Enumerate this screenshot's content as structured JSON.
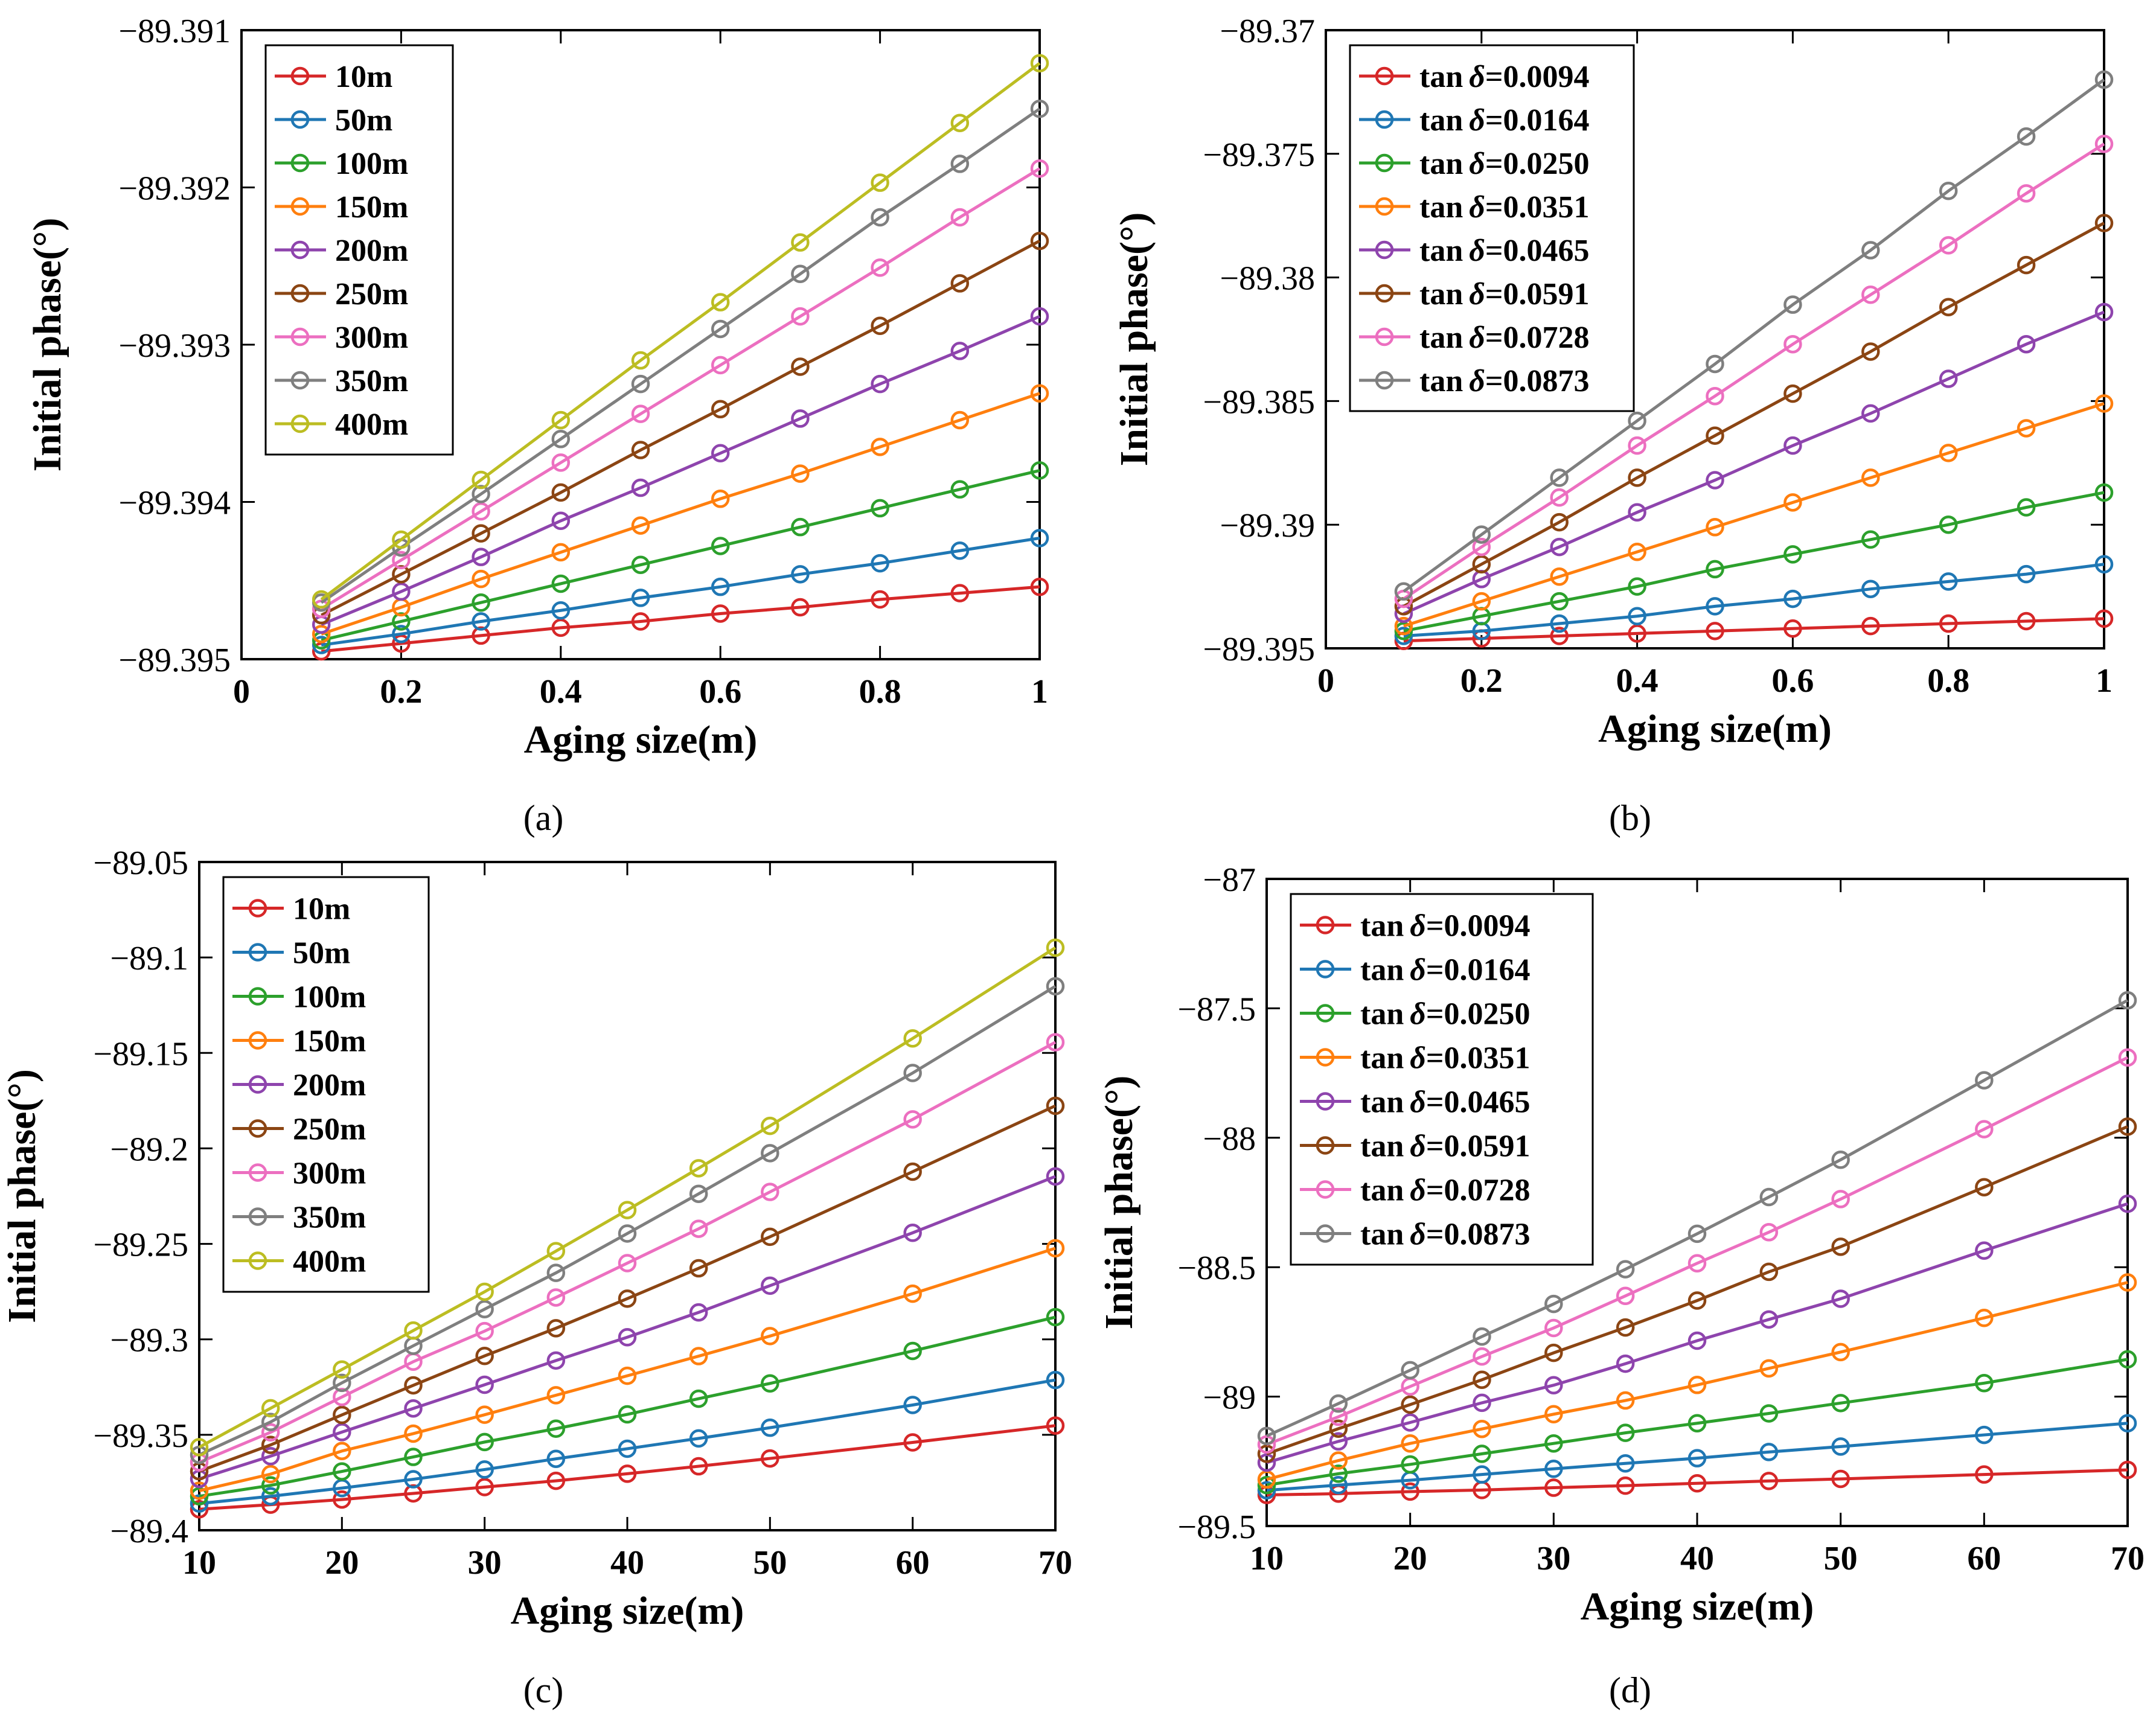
{
  "colors": {
    "series": [
      "#d62728",
      "#1f77b4",
      "#2ca02c",
      "#ff7f0e",
      "#8e44ad",
      "#8b4513",
      "#ec6fc0",
      "#7f7f7f",
      "#bcbd22"
    ]
  },
  "chart_data": [
    {
      "type": "line",
      "caption": "(a)",
      "xlabel": "Aging size(m)",
      "ylabel": "Initial phase(°)",
      "xlim": [
        0,
        1
      ],
      "ylim": [
        -89.395,
        -89.391
      ],
      "xticks": [
        0,
        0.2,
        0.4,
        0.6,
        0.8,
        1
      ],
      "xtick_labels": [
        "0",
        "0.2",
        "0.4",
        "0.6",
        "0.8",
        "1"
      ],
      "yticks": [
        -89.395,
        -89.394,
        -89.393,
        -89.392,
        -89.391
      ],
      "ytick_labels": [
        "−89.395",
        "−89.394",
        "−89.393",
        "−89.392",
        "−89.391"
      ],
      "legend_position": "top-left",
      "x": [
        0.1,
        0.2,
        0.3,
        0.4,
        0.5,
        0.6,
        0.7,
        0.8,
        0.9,
        1.0
      ],
      "series": [
        {
          "name": "10m",
          "values": [
            -89.39495,
            -89.3949,
            -89.39485,
            -89.3948,
            -89.39476,
            -89.39471,
            -89.39467,
            -89.39462,
            -89.39458,
            -89.39454
          ]
        },
        {
          "name": "50m",
          "values": [
            -89.39491,
            -89.39484,
            -89.39476,
            -89.39469,
            -89.39461,
            -89.39454,
            -89.39446,
            -89.39439,
            -89.39431,
            -89.39423
          ]
        },
        {
          "name": "100m",
          "values": [
            -89.39488,
            -89.39476,
            -89.39464,
            -89.39452,
            -89.3944,
            -89.39428,
            -89.39416,
            -89.39404,
            -89.39392,
            -89.3938
          ]
        },
        {
          "name": "150m",
          "values": [
            -89.39484,
            -89.39467,
            -89.39449,
            -89.39432,
            -89.39415,
            -89.39398,
            -89.39382,
            -89.39365,
            -89.39348,
            -89.39331
          ]
        },
        {
          "name": "200m",
          "values": [
            -89.39478,
            -89.39457,
            -89.39435,
            -89.39412,
            -89.39391,
            -89.39369,
            -89.39347,
            -89.39325,
            -89.39304,
            -89.39282
          ]
        },
        {
          "name": "250m",
          "values": [
            -89.39472,
            -89.39446,
            -89.3942,
            -89.39394,
            -89.39367,
            -89.39341,
            -89.39314,
            -89.39288,
            -89.39261,
            -89.39234
          ]
        },
        {
          "name": "300m",
          "values": [
            -89.39468,
            -89.39437,
            -89.39406,
            -89.39375,
            -89.39344,
            -89.39313,
            -89.39282,
            -89.39251,
            -89.39219,
            -89.39188
          ]
        },
        {
          "name": "350m",
          "values": [
            -89.39464,
            -89.39429,
            -89.39395,
            -89.3936,
            -89.39325,
            -89.3929,
            -89.39255,
            -89.39219,
            -89.39185,
            -89.3915
          ]
        },
        {
          "name": "400m",
          "values": [
            -89.39462,
            -89.39424,
            -89.39386,
            -89.39348,
            -89.3931,
            -89.39273,
            -89.39235,
            -89.39197,
            -89.39159,
            -89.39121
          ]
        }
      ]
    },
    {
      "type": "line",
      "caption": "(b)",
      "xlabel": "Aging size(m)",
      "ylabel": "Initial phase(°)",
      "xlim": [
        0,
        1
      ],
      "ylim": [
        -89.395,
        -89.37
      ],
      "xticks": [
        0,
        0.2,
        0.4,
        0.6,
        0.8,
        1
      ],
      "xtick_labels": [
        "0",
        "0.2",
        "0.4",
        "0.6",
        "0.8",
        "1"
      ],
      "yticks": [
        -89.395,
        -89.39,
        -89.385,
        -89.38,
        -89.375,
        -89.37
      ],
      "ytick_labels": [
        "−89.395",
        "−89.39",
        "−89.385",
        "−89.38",
        "−89.375",
        "−89.37"
      ],
      "legend_position": "top-left",
      "legend_prefix": "tan",
      "legend_symbol": "δ",
      "x": [
        0.1,
        0.2,
        0.3,
        0.4,
        0.5,
        0.6,
        0.7,
        0.8,
        0.9,
        1.0
      ],
      "series": [
        {
          "name": "=0.0094",
          "values": [
            -89.3947,
            -89.3946,
            -89.3945,
            -89.3944,
            -89.3943,
            -89.3942,
            -89.3941,
            -89.394,
            -89.3939,
            -89.3938
          ]
        },
        {
          "name": "=0.0164",
          "values": [
            -89.3945,
            -89.3943,
            -89.394,
            -89.3937,
            -89.3933,
            -89.393,
            -89.3926,
            -89.3923,
            -89.392,
            -89.3916
          ]
        },
        {
          "name": "=0.0250",
          "values": [
            -89.3943,
            -89.3937,
            -89.3931,
            -89.3925,
            -89.3918,
            -89.3912,
            -89.3906,
            -89.39,
            -89.3893,
            -89.3887
          ]
        },
        {
          "name": "=0.0351",
          "values": [
            -89.3941,
            -89.3931,
            -89.3921,
            -89.3911,
            -89.3901,
            -89.3891,
            -89.3881,
            -89.3871,
            -89.3861,
            -89.3851
          ]
        },
        {
          "name": "=0.0465",
          "values": [
            -89.3936,
            -89.3922,
            -89.3909,
            -89.3895,
            -89.3882,
            -89.3868,
            -89.3855,
            -89.3841,
            -89.3827,
            -89.3814
          ]
        },
        {
          "name": "=0.0591",
          "values": [
            -89.3933,
            -89.3916,
            -89.3899,
            -89.3881,
            -89.3864,
            -89.3847,
            -89.383,
            -89.3812,
            -89.3795,
            -89.3778
          ]
        },
        {
          "name": "=0.0728",
          "values": [
            -89.393,
            -89.3909,
            -89.3889,
            -89.3868,
            -89.3848,
            -89.3827,
            -89.3807,
            -89.3787,
            -89.3766,
            -89.3746
          ]
        },
        {
          "name": "=0.0873",
          "values": [
            -89.3927,
            -89.3904,
            -89.3881,
            -89.3858,
            -89.3835,
            -89.3811,
            -89.3789,
            -89.3765,
            -89.3743,
            -89.372
          ]
        }
      ]
    },
    {
      "type": "line",
      "caption": "(c)",
      "xlabel": "Aging size(m)",
      "ylabel": "Initial phase(°)",
      "xlim": [
        10,
        70
      ],
      "ylim": [
        -89.4,
        -89.05
      ],
      "xticks": [
        10,
        20,
        30,
        40,
        50,
        60,
        70
      ],
      "xtick_labels": [
        "10",
        "20",
        "30",
        "40",
        "50",
        "60",
        "70"
      ],
      "yticks": [
        -89.4,
        -89.35,
        -89.3,
        -89.25,
        -89.2,
        -89.15,
        -89.1,
        -89.05
      ],
      "ytick_labels": [
        "−89.4",
        "−89.35",
        "−89.3",
        "−89.25",
        "−89.2",
        "−89.15",
        "−89.1",
        "−89.05"
      ],
      "legend_position": "top-left",
      "x": [
        10,
        15,
        20,
        25,
        30,
        35,
        40,
        45,
        50,
        60,
        70
      ],
      "series": [
        {
          "name": "10m",
          "values": [
            -89.389,
            -89.3866,
            -89.3839,
            -89.3807,
            -89.3774,
            -89.3741,
            -89.3704,
            -89.3665,
            -89.3624,
            -89.354,
            -89.3452
          ]
        },
        {
          "name": "50m",
          "values": [
            -89.386,
            -89.3822,
            -89.3779,
            -89.3733,
            -89.3682,
            -89.3626,
            -89.3573,
            -89.3519,
            -89.3463,
            -89.3344,
            -89.3213
          ]
        },
        {
          "name": "100m",
          "values": [
            -89.3822,
            -89.3765,
            -89.3692,
            -89.3616,
            -89.3538,
            -89.3468,
            -89.3393,
            -89.3311,
            -89.3231,
            -89.3061,
            -89.2884
          ]
        },
        {
          "name": "150m",
          "values": [
            -89.3793,
            -89.3706,
            -89.3585,
            -89.3494,
            -89.3395,
            -89.3293,
            -89.3191,
            -89.3088,
            -89.2983,
            -89.2761,
            -89.2523
          ]
        },
        {
          "name": "200m",
          "values": [
            -89.3731,
            -89.3612,
            -89.3486,
            -89.3362,
            -89.3238,
            -89.3111,
            -89.2989,
            -89.2859,
            -89.2719,
            -89.2442,
            -89.2147
          ]
        },
        {
          "name": "250m",
          "values": [
            -89.3691,
            -89.3553,
            -89.3396,
            -89.3241,
            -89.3087,
            -89.2942,
            -89.2787,
            -89.2628,
            -89.2463,
            -89.2122,
            -89.1777
          ]
        },
        {
          "name": "300m",
          "values": [
            -89.3644,
            -89.3487,
            -89.3302,
            -89.3117,
            -89.2957,
            -89.2781,
            -89.2601,
            -89.2421,
            -89.2228,
            -89.1848,
            -89.1444
          ]
        },
        {
          "name": "350m",
          "values": [
            -89.3605,
            -89.3433,
            -89.3228,
            -89.3034,
            -89.2842,
            -89.2652,
            -89.2446,
            -89.2238,
            -89.2025,
            -89.1605,
            -89.1151
          ]
        },
        {
          "name": "400m",
          "values": [
            -89.3565,
            -89.3361,
            -89.3158,
            -89.2954,
            -89.2751,
            -89.2538,
            -89.2323,
            -89.2104,
            -89.1882,
            -89.1424,
            -89.0949
          ]
        }
      ]
    },
    {
      "type": "line",
      "caption": "(d)",
      "xlabel": "Aging size(m)",
      "ylabel": "Initial phase(°)",
      "xlim": [
        10,
        70
      ],
      "ylim": [
        -89.5,
        -87
      ],
      "xticks": [
        10,
        20,
        30,
        40,
        50,
        60,
        70
      ],
      "xtick_labels": [
        "10",
        "20",
        "30",
        "40",
        "50",
        "60",
        "70"
      ],
      "yticks": [
        -89.5,
        -89,
        -88.5,
        -88,
        -87.5,
        -87
      ],
      "ytick_labels": [
        "−89.5",
        "−89",
        "−88.5",
        "−88",
        "−87.5",
        "−87"
      ],
      "legend_position": "top-left",
      "legend_prefix": "tan",
      "legend_symbol": "δ",
      "x": [
        10,
        15,
        20,
        25,
        30,
        35,
        40,
        45,
        50,
        60,
        70
      ],
      "series": [
        {
          "name": "=0.0094",
          "values": [
            -89.38,
            -89.375,
            -89.367,
            -89.361,
            -89.352,
            -89.344,
            -89.335,
            -89.326,
            -89.318,
            -89.301,
            -89.283
          ]
        },
        {
          "name": "=0.0164",
          "values": [
            -89.362,
            -89.342,
            -89.323,
            -89.301,
            -89.279,
            -89.258,
            -89.238,
            -89.214,
            -89.193,
            -89.148,
            -89.103
          ]
        },
        {
          "name": "=0.0250",
          "values": [
            -89.342,
            -89.298,
            -89.262,
            -89.221,
            -89.181,
            -89.14,
            -89.103,
            -89.065,
            -89.025,
            -88.948,
            -88.856
          ]
        },
        {
          "name": "=0.0351",
          "values": [
            -89.32,
            -89.247,
            -89.181,
            -89.125,
            -89.068,
            -89.015,
            -88.955,
            -88.891,
            -88.828,
            -88.696,
            -88.559
          ]
        },
        {
          "name": "=0.0465",
          "values": [
            -89.255,
            -89.173,
            -89.1,
            -89.024,
            -88.956,
            -88.873,
            -88.784,
            -88.702,
            -88.622,
            -88.436,
            -88.255
          ]
        },
        {
          "name": "=0.0591",
          "values": [
            -89.221,
            -89.124,
            -89.031,
            -88.935,
            -88.831,
            -88.733,
            -88.629,
            -88.518,
            -88.421,
            -88.191,
            -87.957
          ]
        },
        {
          "name": "=0.0728",
          "values": [
            -89.185,
            -89.078,
            -88.961,
            -88.845,
            -88.735,
            -88.611,
            -88.485,
            -88.365,
            -88.237,
            -87.967,
            -87.69
          ]
        },
        {
          "name": "=0.0873",
          "values": [
            -89.152,
            -89.027,
            -88.898,
            -88.768,
            -88.642,
            -88.508,
            -88.371,
            -88.229,
            -88.085,
            -87.778,
            -87.469
          ]
        }
      ]
    }
  ]
}
